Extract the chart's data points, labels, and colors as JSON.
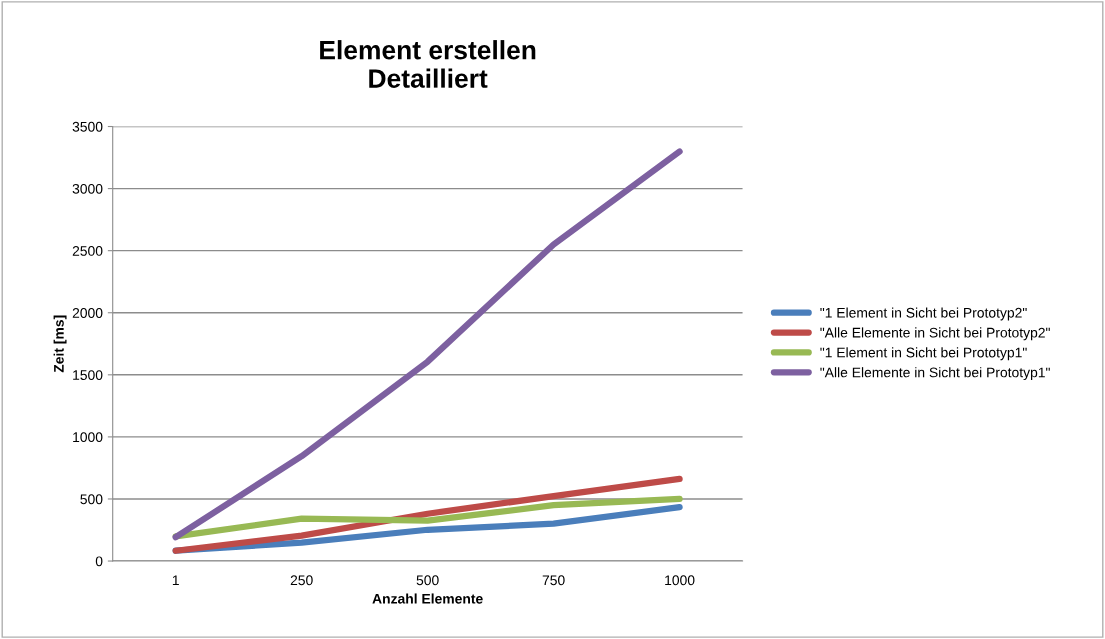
{
  "chart_data": {
    "type": "line",
    "title": "Element erstellen\nDetailliert",
    "xlabel": "Anzahl Elemente",
    "ylabel": "Zeit [ms]",
    "categories": [
      "1",
      "250",
      "500",
      "750",
      "1000"
    ],
    "series": [
      {
        "name": "\"1 Element in Sicht bei Prototyp2\"",
        "color": "#4a7ebb",
        "values": [
          83,
          149,
          252,
          301,
          434
        ]
      },
      {
        "name": "\"Alle Elemente in Sicht bei Prototyp2\"",
        "color": "#be4b48",
        "values": [
          83,
          205,
          381,
          523,
          662
        ]
      },
      {
        "name": "\"1 Element in Sicht bei Prototyp1\"",
        "color": "#98b954",
        "values": [
          199,
          341,
          325,
          450,
          500
        ]
      },
      {
        "name": "\"Alle Elemente in Sicht bei Prototyp1\"",
        "color": "#7d60a0",
        "values": [
          192,
          845,
          1606,
          2550,
          3298
        ]
      }
    ],
    "ylim": [
      0,
      3500
    ],
    "yticks": [
      0,
      500,
      1000,
      1500,
      2000,
      2500,
      3000,
      3500
    ],
    "grid": "y",
    "legend": "right",
    "marker": "none",
    "line_style": "solid"
  }
}
